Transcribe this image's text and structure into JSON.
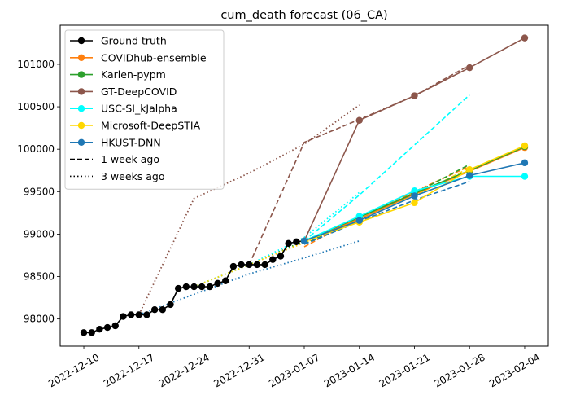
{
  "chart_data": {
    "type": "line",
    "title": "cum_death forecast (06_CA)",
    "xlabel": "",
    "ylabel": "",
    "x_ticks": [
      "2022-12-10",
      "2022-12-17",
      "2022-12-24",
      "2022-12-31",
      "2023-01-07",
      "2023-01-14",
      "2023-01-21",
      "2023-01-28",
      "2023-02-04"
    ],
    "y_ticks": [
      98000,
      98500,
      99000,
      99500,
      100000,
      100500,
      101000
    ],
    "xlim": [
      "2022-12-07",
      "2023-02-07"
    ],
    "ylim": [
      97680,
      101460
    ],
    "grid": false,
    "legend_position": "top-left",
    "ground_truth": {
      "name": "Ground truth",
      "color": "#000000",
      "x": [
        "2022-12-10",
        "2022-12-11",
        "2022-12-12",
        "2022-12-13",
        "2022-12-14",
        "2022-12-15",
        "2022-12-16",
        "2022-12-17",
        "2022-12-18",
        "2022-12-19",
        "2022-12-20",
        "2022-12-21",
        "2022-12-22",
        "2022-12-23",
        "2022-12-24",
        "2022-12-25",
        "2022-12-26",
        "2022-12-27",
        "2022-12-28",
        "2022-12-29",
        "2022-12-30",
        "2022-12-31",
        "2023-01-01",
        "2023-01-02",
        "2023-01-03",
        "2023-01-04",
        "2023-01-05",
        "2023-01-06",
        "2023-01-07"
      ],
      "y": [
        97840,
        97840,
        97880,
        97900,
        97920,
        98030,
        98050,
        98050,
        98050,
        98110,
        98110,
        98170,
        98360,
        98380,
        98380,
        98380,
        98380,
        98420,
        98450,
        98620,
        98640,
        98640,
        98640,
        98640,
        98700,
        98740,
        98890,
        98910,
        98920
      ]
    },
    "forecasts": [
      {
        "name": "COVIDhub-ensemble",
        "color": "#ff7f0e",
        "x": [
          "2023-01-07",
          "2023-01-14",
          "2023-01-21",
          "2023-01-28",
          "2023-02-04"
        ],
        "y": [
          98920,
          99180,
          99470,
          99740,
          100020
        ],
        "week1_x": [
          "2023-01-07",
          "2023-01-14",
          "2023-01-21",
          "2023-01-28"
        ],
        "week1_y": [
          98850,
          99200,
          99500,
          99800
        ],
        "week3_x": [
          "2022-12-24",
          "2022-12-31",
          "2023-01-07",
          "2023-01-14"
        ],
        "week3_y": [
          98380,
          98640,
          98900,
          99180
        ]
      },
      {
        "name": "Karlen-pypm",
        "color": "#2ca02c",
        "x": [
          "2023-01-07",
          "2023-01-14",
          "2023-01-21",
          "2023-01-28",
          "2023-02-04"
        ],
        "y": [
          98920,
          99200,
          99480,
          99750,
          100030
        ],
        "week1_x": [
          "2023-01-07",
          "2023-01-14",
          "2023-01-21",
          "2023-01-28"
        ],
        "week1_y": [
          98880,
          99200,
          99480,
          99820
        ],
        "week3_x": [
          "2022-12-24",
          "2022-12-31",
          "2023-01-07",
          "2023-01-14"
        ],
        "week3_y": [
          98380,
          98640,
          98920,
          99200
        ]
      },
      {
        "name": "GT-DeepCOVID",
        "color": "#8c564b",
        "x": [
          "2023-01-07",
          "2023-01-14",
          "2023-01-21",
          "2023-01-28",
          "2023-02-04"
        ],
        "y": [
          98920,
          100340,
          100630,
          100960,
          101310
        ],
        "week1_x": [
          "2022-12-31",
          "2023-01-07",
          "2023-01-14",
          "2023-01-21",
          "2023-01-28"
        ],
        "week1_y": [
          98640,
          100080,
          100350,
          100630,
          100990
        ],
        "week3_x": [
          "2022-12-17",
          "2022-12-24",
          "2022-12-31",
          "2023-01-07",
          "2023-01-14"
        ],
        "week3_y": [
          98050,
          99420,
          99720,
          100060,
          100520
        ]
      },
      {
        "name": "USC-SI_kJalpha",
        "color": "#00ffff",
        "x": [
          "2023-01-07",
          "2023-01-14",
          "2023-01-21",
          "2023-01-28",
          "2023-02-04"
        ],
        "y": [
          98920,
          99210,
          99510,
          99680,
          99680
        ],
        "week1_x": [
          "2023-01-07",
          "2023-01-14",
          "2023-01-21",
          "2023-01-28"
        ],
        "week1_y": [
          98920,
          99460,
          100050,
          100640
        ],
        "week3_x": [
          "2022-12-24",
          "2022-12-31",
          "2023-01-07",
          "2023-01-14"
        ],
        "week3_y": [
          98380,
          98640,
          98960,
          99490
        ]
      },
      {
        "name": "Microsoft-DeepSTIA",
        "color": "#ffd700",
        "x": [
          "2023-01-07",
          "2023-01-14",
          "2023-01-21",
          "2023-01-28",
          "2023-02-04"
        ],
        "y": [
          98920,
          99140,
          99370,
          99760,
          100040
        ],
        "week1_x": [
          "2023-01-07",
          "2023-01-14",
          "2023-01-21",
          "2023-01-28"
        ],
        "week1_y": [
          98900,
          99180,
          99450,
          99780
        ],
        "week3_x": [
          "2022-12-24",
          "2022-12-31",
          "2023-01-07",
          "2023-01-14"
        ],
        "week3_y": [
          98380,
          98640,
          98900,
          99150
        ]
      },
      {
        "name": "HKUST-DNN",
        "color": "#1f77b4",
        "x": [
          "2023-01-07",
          "2023-01-14",
          "2023-01-21",
          "2023-01-28",
          "2023-02-04"
        ],
        "y": [
          98920,
          99160,
          99450,
          99690,
          99840
        ],
        "week1_x": [
          "2023-01-07",
          "2023-01-14",
          "2023-01-21",
          "2023-01-28"
        ],
        "week1_y": [
          98880,
          99150,
          99400,
          99620
        ],
        "week3_x": [
          "2022-12-17",
          "2022-12-24",
          "2022-12-31",
          "2023-01-07",
          "2023-01-14"
        ],
        "week3_y": [
          98050,
          98290,
          98530,
          98720,
          98920
        ]
      }
    ],
    "legend": {
      "entries": [
        "Ground truth",
        "COVIDhub-ensemble",
        "Karlen-pypm",
        "GT-DeepCOVID",
        "USC-SI_kJalpha",
        "Microsoft-DeepSTIA",
        "HKUST-DNN",
        "1 week ago",
        "3 weeks ago"
      ],
      "colors": [
        "#000000",
        "#ff7f0e",
        "#2ca02c",
        "#8c564b",
        "#00ffff",
        "#ffd700",
        "#1f77b4",
        "#000000",
        "#000000"
      ],
      "styles": [
        "marker-line",
        "marker-line",
        "marker-line",
        "marker-line",
        "marker-line",
        "marker-line",
        "marker-line",
        "dashed",
        "dotted"
      ]
    }
  }
}
